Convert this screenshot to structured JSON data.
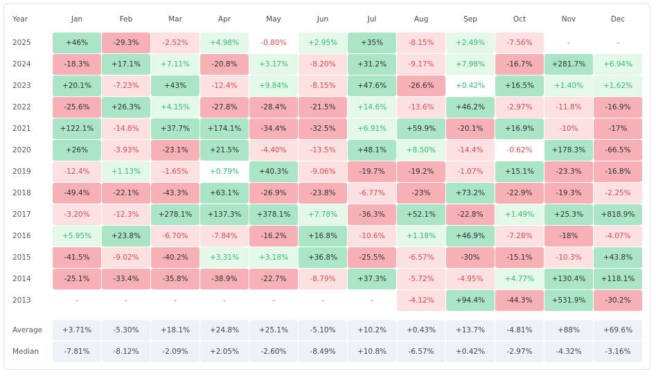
{
  "header": [
    "Year",
    "Jan",
    "Feb",
    "Mar",
    "Apr",
    "May",
    "Jun",
    "Jul",
    "Aug",
    "Sep",
    "Oct",
    "Nov",
    "Dec"
  ],
  "rows": [
    {
      "year": "2025",
      "cells": [
        "+46%",
        "-29.3%",
        "-2.52%",
        "+4.98%",
        "-0.80%",
        "+2.95%",
        "+35%",
        "-8.15%",
        "+2.49%",
        "-7.56%",
        "-",
        "-"
      ]
    },
    {
      "year": "2024",
      "cells": [
        "-18.3%",
        "+17.1%",
        "+7.11%",
        "-20.8%",
        "+3.17%",
        "-8.20%",
        "+31.2%",
        "-9.17%",
        "+7.98%",
        "-16.7%",
        "+281.7%",
        "+6.94%"
      ]
    },
    {
      "year": "2023",
      "cells": [
        "+20.1%",
        "-7.23%",
        "+43%",
        "-12.4%",
        "+9.84%",
        "-8.15%",
        "+47.6%",
        "-26.6%",
        "+0.42%",
        "+16.5%",
        "+1.40%",
        "+1.62%"
      ]
    },
    {
      "year": "2022",
      "cells": [
        "-25.6%",
        "+26.3%",
        "+4.15%",
        "-27.8%",
        "-28.4%",
        "-21.5%",
        "+14.6%",
        "-13.6%",
        "+46.2%",
        "-2.97%",
        "-11.8%",
        "-16.9%"
      ]
    },
    {
      "year": "2021",
      "cells": [
        "+122.1%",
        "-14.8%",
        "+37.7%",
        "+174.1%",
        "-34.4%",
        "-32.5%",
        "+6.91%",
        "+59.9%",
        "-20.1%",
        "+16.9%",
        "-10%",
        "-17%"
      ]
    },
    {
      "year": "2020",
      "cells": [
        "+26%",
        "-3.93%",
        "-23.1%",
        "+21.5%",
        "-4.40%",
        "-13.5%",
        "+48.1%",
        "+8.50%",
        "-14.4%",
        "-0.62%",
        "+178.3%",
        "-66.5%"
      ]
    },
    {
      "year": "2019",
      "cells": [
        "-12.4%",
        "+1.13%",
        "-1.65%",
        "+0.79%",
        "+40.3%",
        "-9.06%",
        "-19.7%",
        "-19.2%",
        "-1.07%",
        "+15.1%",
        "-23.3%",
        "-16.8%"
      ]
    },
    {
      "year": "2018",
      "cells": [
        "-49.4%",
        "-22.1%",
        "-43.3%",
        "+63.1%",
        "-26.9%",
        "-23.8%",
        "-6.77%",
        "-23%",
        "+73.2%",
        "-22.9%",
        "-19.3%",
        "-2.25%"
      ]
    },
    {
      "year": "2017",
      "cells": [
        "-3.20%",
        "-12.3%",
        "+278.1%",
        "+137.3%",
        "+378.1%",
        "+7.78%",
        "-36.3%",
        "+52.1%",
        "-22.8%",
        "+1.49%",
        "+25.3%",
        "+818.9%"
      ]
    },
    {
      "year": "2016",
      "cells": [
        "+5.95%",
        "+23.8%",
        "-6.70%",
        "-7.84%",
        "-16.2%",
        "+16.8%",
        "-10.6%",
        "+1.18%",
        "+46.9%",
        "-7.28%",
        "-18%",
        "-4.07%"
      ]
    },
    {
      "year": "2015",
      "cells": [
        "-41.5%",
        "-9.02%",
        "-40.2%",
        "+3.31%",
        "+3.18%",
        "+36.8%",
        "-25.5%",
        "-6.57%",
        "-30%",
        "-15.1%",
        "-10.3%",
        "+43.8%"
      ]
    },
    {
      "year": "2014",
      "cells": [
        "-25.1%",
        "-33.4%",
        "-35.8%",
        "-38.9%",
        "-22.7%",
        "-8.79%",
        "+37.3%",
        "-5.72%",
        "-4.95%",
        "+4.77%",
        "+130.4%",
        "+118.1%"
      ]
    },
    {
      "year": "2013",
      "cells": [
        "-",
        "-",
        "-",
        "-",
        "-",
        "-",
        "-",
        "-4.12%",
        "+94.4%",
        "-44.3%",
        "+531.9%",
        "-30.2%"
      ]
    }
  ],
  "summary": [
    {
      "label": "Average",
      "cells": [
        "+3.71%",
        "-5.30%",
        "+18.1%",
        "+24.8%",
        "+25.1%",
        "-5.10%",
        "+10.2%",
        "+0.43%",
        "+13.7%",
        "-4.81%",
        "+88%",
        "+69.6%"
      ]
    },
    {
      "label": "Median",
      "cells": [
        "-7.81%",
        "-8.12%",
        "-2.09%",
        "+2.05%",
        "-2.60%",
        "-8.49%",
        "+10.8%",
        "-6.57%",
        "+0.42%",
        "-2.97%",
        "-4.32%",
        "-3.16%"
      ]
    }
  ]
}
